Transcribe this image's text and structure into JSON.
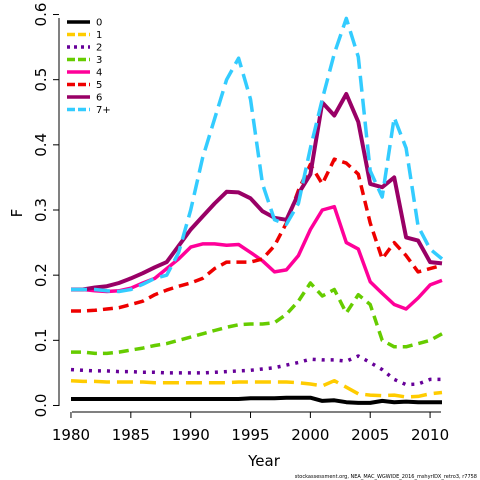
{
  "chart_data": {
    "type": "line",
    "xlabel": "Year",
    "ylabel": "F",
    "xlim": [
      1979,
      2012.5
    ],
    "ylim": [
      -0.01,
      0.61
    ],
    "xticks": [
      "1980",
      "1985",
      "1990",
      "1995",
      "2000",
      "2005",
      "2010"
    ],
    "yticks": [
      "0.0",
      "0.1",
      "0.2",
      "0.3",
      "0.4",
      "0.5",
      "0.6"
    ],
    "legend_position": "top-left",
    "footnote": "stockassessment.org, NEA_MAC_WGWIDE_2016_mshyrIDX_retro3, r7758",
    "x": [
      1980,
      1981,
      1982,
      1983,
      1984,
      1985,
      1986,
      1987,
      1988,
      1989,
      1990,
      1991,
      1992,
      1993,
      1994,
      1995,
      1996,
      1997,
      1998,
      1999,
      2000,
      2001,
      2002,
      2003,
      2004,
      2005,
      2006,
      2007,
      2008,
      2009,
      2010,
      2011
    ],
    "series": [
      {
        "name": "0",
        "color": "#000000",
        "dash": "solid",
        "values": [
          0.01,
          0.01,
          0.01,
          0.01,
          0.01,
          0.01,
          0.01,
          0.01,
          0.01,
          0.01,
          0.01,
          0.01,
          0.01,
          0.01,
          0.01,
          0.011,
          0.011,
          0.011,
          0.012,
          0.012,
          0.012,
          0.007,
          0.008,
          0.005,
          0.004,
          0.004,
          0.007,
          0.005,
          0.006,
          0.005,
          0.005,
          0.005
        ]
      },
      {
        "name": "1",
        "color": "#FFCC00",
        "dash": "longdash",
        "values": [
          0.038,
          0.037,
          0.037,
          0.036,
          0.036,
          0.036,
          0.036,
          0.035,
          0.035,
          0.035,
          0.035,
          0.035,
          0.035,
          0.035,
          0.036,
          0.036,
          0.036,
          0.036,
          0.036,
          0.035,
          0.033,
          0.03,
          0.038,
          0.028,
          0.018,
          0.016,
          0.015,
          0.016,
          0.013,
          0.014,
          0.018,
          0.02
        ]
      },
      {
        "name": "2",
        "color": "#660099",
        "dash": "dotted",
        "values": [
          0.055,
          0.054,
          0.053,
          0.053,
          0.052,
          0.052,
          0.051,
          0.051,
          0.05,
          0.05,
          0.05,
          0.05,
          0.051,
          0.052,
          0.053,
          0.054,
          0.056,
          0.058,
          0.062,
          0.066,
          0.071,
          0.07,
          0.07,
          0.068,
          0.076,
          0.066,
          0.055,
          0.04,
          0.032,
          0.033,
          0.04,
          0.04
        ]
      },
      {
        "name": "3",
        "color": "#66CC00",
        "dash": "dashed",
        "values": [
          0.082,
          0.082,
          0.08,
          0.08,
          0.082,
          0.085,
          0.088,
          0.092,
          0.095,
          0.1,
          0.105,
          0.11,
          0.115,
          0.12,
          0.124,
          0.125,
          0.125,
          0.127,
          0.14,
          0.16,
          0.188,
          0.168,
          0.178,
          0.142,
          0.17,
          0.155,
          0.1,
          0.09,
          0.09,
          0.095,
          0.1,
          0.11
        ]
      },
      {
        "name": "4",
        "color": "#FF0099",
        "dash": "solid-thick",
        "values": [
          0.178,
          0.178,
          0.176,
          0.175,
          0.176,
          0.18,
          0.188,
          0.195,
          0.21,
          0.225,
          0.243,
          0.248,
          0.248,
          0.246,
          0.247,
          0.235,
          0.222,
          0.205,
          0.208,
          0.23,
          0.27,
          0.3,
          0.305,
          0.25,
          0.24,
          0.19,
          0.172,
          0.155,
          0.148,
          0.165,
          0.185,
          0.192
        ]
      },
      {
        "name": "5",
        "color": "#EE0000",
        "dash": "dashed",
        "values": [
          0.145,
          0.145,
          0.146,
          0.148,
          0.15,
          0.155,
          0.16,
          0.17,
          0.177,
          0.183,
          0.188,
          0.195,
          0.21,
          0.22,
          0.22,
          0.22,
          0.225,
          0.245,
          0.28,
          0.33,
          0.37,
          0.34,
          0.378,
          0.372,
          0.355,
          0.28,
          0.225,
          0.25,
          0.23,
          0.205,
          0.21,
          0.215
        ]
      },
      {
        "name": "6",
        "color": "#990066",
        "dash": "solid",
        "values": [
          0.178,
          0.178,
          0.181,
          0.183,
          0.188,
          0.195,
          0.203,
          0.212,
          0.22,
          0.245,
          0.27,
          0.29,
          0.31,
          0.328,
          0.327,
          0.318,
          0.298,
          0.288,
          0.285,
          0.325,
          0.355,
          0.465,
          0.445,
          0.478,
          0.435,
          0.34,
          0.335,
          0.35,
          0.258,
          0.253,
          0.22,
          0.218
        ]
      },
      {
        "name": "7+",
        "color": "#33CCFF",
        "dash": "longdash",
        "values": [
          0.178,
          0.178,
          0.178,
          0.176,
          0.175,
          0.178,
          0.186,
          0.195,
          0.2,
          0.235,
          0.3,
          0.38,
          0.44,
          0.5,
          0.533,
          0.47,
          0.34,
          0.285,
          0.278,
          0.31,
          0.395,
          0.47,
          0.54,
          0.594,
          0.535,
          0.36,
          0.32,
          0.442,
          0.395,
          0.275,
          0.24,
          0.225
        ]
      }
    ]
  }
}
